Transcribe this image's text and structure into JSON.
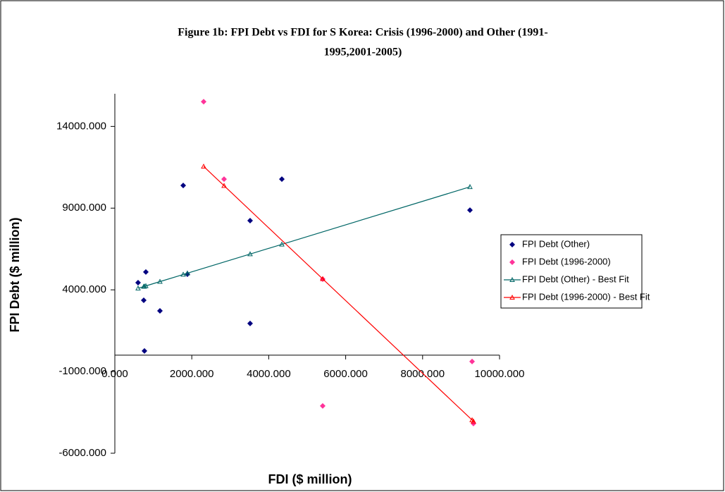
{
  "chart_data": {
    "type": "scatter",
    "title": [
      "Figure 1b: FPI Debt vs FDI for S Korea: Crisis (1996-2000) and Other (1991-",
      "1995,2001-2005)"
    ],
    "x_label": "FDI ($ million)",
    "y_label": "FPI Debt ($ million)",
    "xlim": [
      0,
      10000
    ],
    "ylim": [
      -6000,
      16000
    ],
    "xticks": [
      {
        "value": 0,
        "label": "0.000"
      },
      {
        "value": 2000,
        "label": "2000.000"
      },
      {
        "value": 4000,
        "label": "4000.000"
      },
      {
        "value": 6000,
        "label": "6000.000"
      },
      {
        "value": 8000,
        "label": "8000.000"
      },
      {
        "value": 10000,
        "label": "10000.000"
      }
    ],
    "yticks": [
      {
        "value": -6000,
        "label": "-6000.000"
      },
      {
        "value": -1000,
        "label": "-1000.000"
      },
      {
        "value": 4000,
        "label": "4000.000"
      },
      {
        "value": 9000,
        "label": "9000.000"
      },
      {
        "value": 14000,
        "label": "14000.000"
      }
    ],
    "legend": "right",
    "series": [
      {
        "name": "FPI Debt (Other)",
        "color": "#000080",
        "marker": "diamond",
        "line": false,
        "x": [
          604,
          806,
          751,
          1172,
          769,
          1777,
          1886,
          3516,
          3516,
          4341,
          9231
        ],
        "values": [
          4440,
          5090,
          3360,
          2716,
          259,
          10388,
          4957,
          8233,
          1940,
          10776,
          8879
        ]
      },
      {
        "name": "FPI Debt (1996-2000)",
        "color": "#ff3399",
        "marker": "diamond",
        "line": false,
        "x": [
          2308,
          2839,
          5403,
          5403,
          9286,
          9322
        ],
        "values": [
          15517,
          10776,
          4655,
          -3103,
          -388,
          -4181
        ]
      },
      {
        "name": "FPI Debt (Other) - Best Fit",
        "color": "#006666",
        "marker": "triangle",
        "line": true,
        "x": [
          604,
          751,
          769,
          806,
          1172,
          1777,
          1886,
          3516,
          4341,
          9231
        ],
        "values": [
          4095,
          4201,
          4214,
          4240,
          4504,
          4939,
          5017,
          6190,
          6784,
          10302
        ]
      },
      {
        "name": "FPI Debt (1996-2000) - Best Fit",
        "color": "#ff0000",
        "marker": "triangle",
        "line": true,
        "x": [
          2308,
          2839,
          5403,
          9286,
          9322
        ],
        "values": [
          11552,
          10371,
          4669,
          -3967,
          -4047
        ]
      }
    ]
  }
}
